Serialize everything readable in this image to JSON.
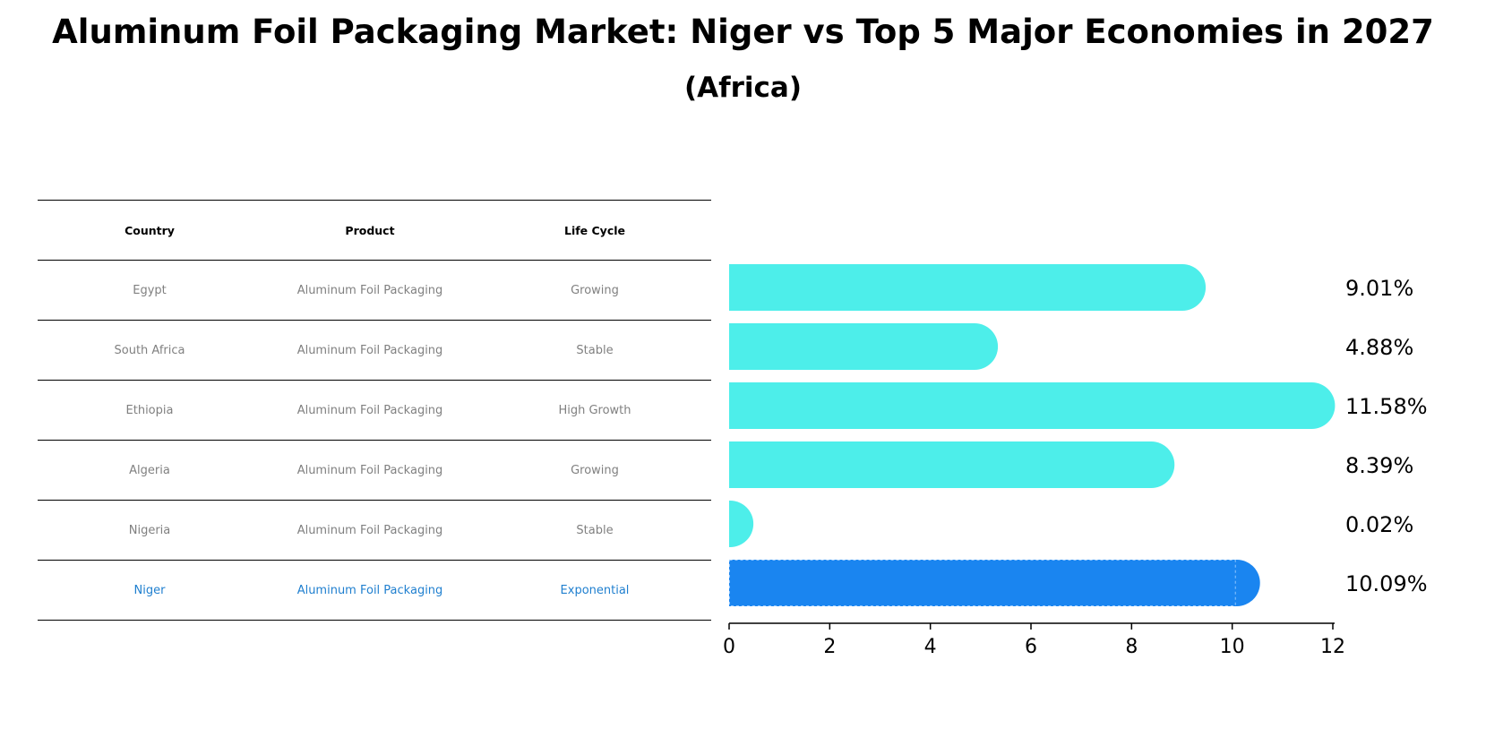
{
  "title": "Aluminum Foil Packaging Market: Niger vs Top 5 Major Economies in 2027",
  "subtitle": "(Africa)",
  "table": {
    "headers": [
      "Country",
      "Product",
      "Life Cycle"
    ],
    "rows": [
      {
        "country": "Egypt",
        "product": "Aluminum Foil Packaging",
        "life_cycle": "Growing"
      },
      {
        "country": "South Africa",
        "product": "Aluminum Foil Packaging",
        "life_cycle": "Stable"
      },
      {
        "country": "Ethiopia",
        "product": "Aluminum Foil Packaging",
        "life_cycle": "High Growth"
      },
      {
        "country": "Algeria",
        "product": "Aluminum Foil Packaging",
        "life_cycle": "Growing"
      },
      {
        "country": "Nigeria",
        "product": "Aluminum Foil Packaging",
        "life_cycle": "Stable"
      },
      {
        "country": "Niger",
        "product": "Aluminum Foil Packaging",
        "life_cycle": "Exponential"
      }
    ]
  },
  "colors": {
    "bar": "#4deeea",
    "highlight_bar": "#1a85f0",
    "highlight_text": "#1f7fcf",
    "muted_text": "#808080"
  },
  "chart_data": {
    "type": "bar",
    "orientation": "horizontal",
    "categories": [
      "Egypt",
      "South Africa",
      "Ethiopia",
      "Algeria",
      "Nigeria",
      "Niger"
    ],
    "values": [
      9.01,
      4.88,
      11.58,
      8.39,
      0.02,
      10.09
    ],
    "value_labels": [
      "9.01%",
      "4.88%",
      "11.58%",
      "8.39%",
      "0.02%",
      "10.09%"
    ],
    "highlight_category": "Niger",
    "xlim": [
      0,
      12
    ],
    "xticks": [
      0,
      2,
      4,
      6,
      8,
      10,
      12
    ],
    "grid": false
  }
}
